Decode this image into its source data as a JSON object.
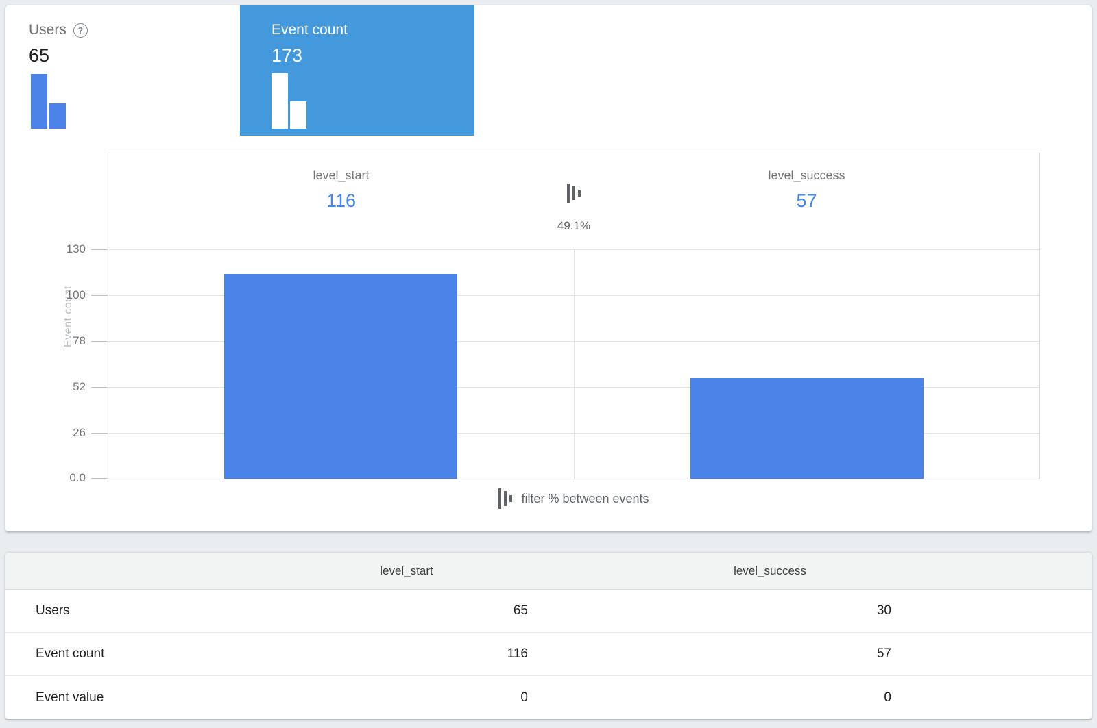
{
  "colors": {
    "selected_metric_card": "#4499dc",
    "bar_fill": "#4a82e8",
    "value_text_blue": "#4285f4",
    "page_background": "#e9edf0"
  },
  "metric_cards": [
    {
      "label": "Users",
      "value": "65",
      "selected": false,
      "has_help_icon": true,
      "mini_bars": [
        65,
        30
      ]
    },
    {
      "label": "Event count",
      "value": "173",
      "selected": true,
      "mini_bars": [
        116,
        57
      ]
    }
  ],
  "help_icon_glyph": "?",
  "chart_data": {
    "type": "bar",
    "categories": [
      "level_start",
      "level_success"
    ],
    "values": [
      116,
      57
    ],
    "ylabel": "Event count",
    "ylim": [
      0,
      130
    ],
    "yticks": [
      "130",
      "100",
      "78",
      "52",
      "26",
      "0.0"
    ],
    "grid": true,
    "legend_position": "none",
    "filter_percent_between_events": "49.1%",
    "footer_label": "filter % between events"
  },
  "table": {
    "columns": [
      "",
      "level_start",
      "level_success"
    ],
    "rows": [
      {
        "label": "Users",
        "values": [
          "65",
          "30"
        ]
      },
      {
        "label": "Event count",
        "values": [
          "116",
          "57"
        ]
      },
      {
        "label": "Event value",
        "values": [
          "0",
          "0"
        ]
      }
    ]
  }
}
